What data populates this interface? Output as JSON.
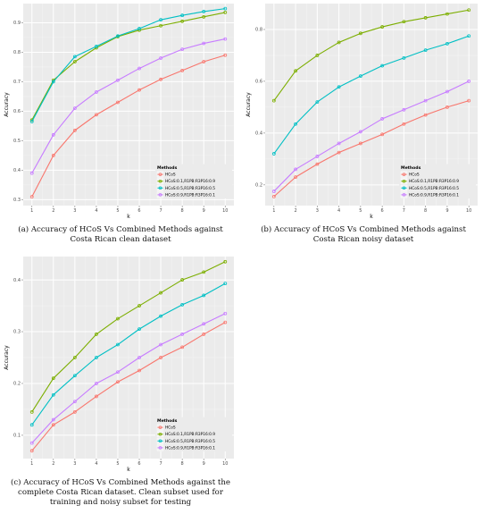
{
  "legend_title": "Methods",
  "series_names": [
    "HCoS",
    "HCoS:0.1,R1PB:R3P16:0.9",
    "HCoS:0.5,R1PB:R3P16:0.5",
    "HCoS:0.9,R1PB:R3P16:0.1"
  ],
  "series_colors": [
    "#F8766D",
    "#7CAE00",
    "#00BFC4",
    "#C77CFF"
  ],
  "chart_data": [
    {
      "id": "a",
      "type": "line",
      "caption_label": "(a)",
      "caption_lines": [
        "Accuracy of HCoS Vs Combined Methods against",
        "Costa Rican clean dataset"
      ],
      "xlabel": "k",
      "ylabel": "Accuracy",
      "x": [
        1,
        2,
        3,
        4,
        5,
        6,
        7,
        8,
        9,
        10
      ],
      "xlim": [
        1,
        10
      ],
      "ylim": [
        0.28,
        0.965
      ],
      "yticks": [
        0.3,
        0.4,
        0.5,
        0.6,
        0.7,
        0.8,
        0.9
      ],
      "ytick_labels": [
        "0.3",
        "0.4",
        "0.5",
        "0.6",
        "0.7",
        "0.8",
        "0.9"
      ],
      "legend_position": "bottom-right",
      "grid": true,
      "series": [
        {
          "name": "HCoS",
          "values": [
            0.31,
            0.45,
            0.535,
            0.588,
            0.63,
            0.672,
            0.708,
            0.738,
            0.768,
            0.79
          ]
        },
        {
          "name": "HCoS:0.1,R1PB:R3P16:0.9",
          "values": [
            0.57,
            0.705,
            0.768,
            0.815,
            0.853,
            0.875,
            0.89,
            0.905,
            0.92,
            0.935
          ]
        },
        {
          "name": "HCoS:0.5,R1PB:R3P16:0.5",
          "values": [
            0.565,
            0.7,
            0.785,
            0.82,
            0.855,
            0.88,
            0.91,
            0.925,
            0.938,
            0.948
          ]
        },
        {
          "name": "HCoS:0.9,R1PB:R3P16:0.1",
          "values": [
            0.39,
            0.52,
            0.61,
            0.665,
            0.705,
            0.745,
            0.78,
            0.81,
            0.83,
            0.845
          ]
        }
      ]
    },
    {
      "id": "b",
      "type": "line",
      "caption_label": "(b)",
      "caption_lines": [
        "Accuracy of HCoS Vs Combined Methods against",
        "Costa Rican noisy dataset"
      ],
      "xlabel": "k",
      "ylabel": "Accuracy",
      "x": [
        1,
        2,
        3,
        4,
        5,
        6,
        7,
        8,
        9,
        10
      ],
      "xlim": [
        1,
        10
      ],
      "ylim": [
        0.12,
        0.9
      ],
      "yticks": [
        0.2,
        0.4,
        0.6,
        0.8
      ],
      "ytick_labels": [
        "0.2",
        "0.4",
        "0.6",
        "0.8"
      ],
      "legend_position": "bottom-right",
      "grid": true,
      "series": [
        {
          "name": "HCoS",
          "values": [
            0.155,
            0.23,
            0.28,
            0.325,
            0.36,
            0.395,
            0.435,
            0.47,
            0.5,
            0.525
          ]
        },
        {
          "name": "HCoS:0.1,R1PB:R3P16:0.9",
          "values": [
            0.525,
            0.64,
            0.7,
            0.75,
            0.785,
            0.81,
            0.83,
            0.845,
            0.86,
            0.875
          ]
        },
        {
          "name": "HCoS:0.5,R1PB:R3P16:0.5",
          "values": [
            0.32,
            0.435,
            0.52,
            0.578,
            0.62,
            0.66,
            0.69,
            0.72,
            0.745,
            0.775
          ]
        },
        {
          "name": "HCoS:0.9,R1PB:R3P16:0.1",
          "values": [
            0.175,
            0.26,
            0.31,
            0.36,
            0.405,
            0.455,
            0.49,
            0.525,
            0.56,
            0.6
          ]
        }
      ]
    },
    {
      "id": "c",
      "type": "line",
      "caption_label": "(c)",
      "caption_lines": [
        "Accuracy of HCoS Vs Combined Methods against the",
        "complete Costa Rican dataset. Clean subset used for",
        "training and noisy subset for testing"
      ],
      "xlabel": "k",
      "ylabel": "Accuracy",
      "x": [
        1,
        2,
        3,
        4,
        5,
        6,
        7,
        8,
        9,
        10
      ],
      "xlim": [
        1,
        10
      ],
      "ylim": [
        0.055,
        0.445
      ],
      "yticks": [
        0.1,
        0.2,
        0.3,
        0.4
      ],
      "ytick_labels": [
        "0.1",
        "0.2",
        "0.3",
        "0.4"
      ],
      "legend_position": "bottom-right",
      "grid": true,
      "series": [
        {
          "name": "HCoS",
          "values": [
            0.07,
            0.12,
            0.145,
            0.175,
            0.203,
            0.225,
            0.25,
            0.27,
            0.295,
            0.318
          ]
        },
        {
          "name": "HCoS:0.1,R1PB:R3P16:0.9",
          "values": [
            0.145,
            0.21,
            0.25,
            0.295,
            0.325,
            0.35,
            0.375,
            0.4,
            0.415,
            0.435
          ]
        },
        {
          "name": "HCoS:0.5,R1PB:R3P16:0.5",
          "values": [
            0.12,
            0.178,
            0.215,
            0.25,
            0.275,
            0.305,
            0.33,
            0.352,
            0.37,
            0.393
          ]
        },
        {
          "name": "HCoS:0.9,R1PB:R3P16:0.1",
          "values": [
            0.085,
            0.13,
            0.165,
            0.2,
            0.222,
            0.25,
            0.275,
            0.295,
            0.315,
            0.335
          ]
        }
      ]
    }
  ]
}
